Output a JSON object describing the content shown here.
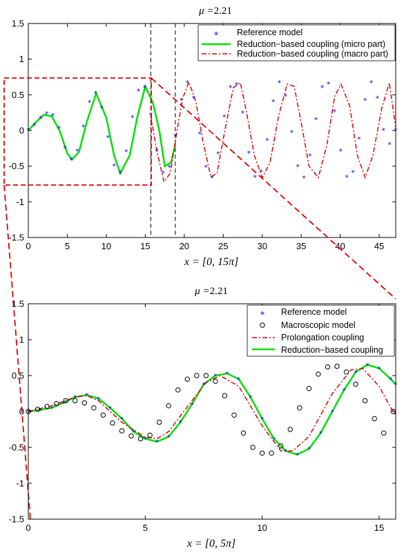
{
  "chart_data": [
    {
      "type": "line",
      "title": "μ =2.21",
      "title_main": "μ =",
      "title_value": "2.21",
      "xlabel": "x = [0, 15π]",
      "xlim": [
        0,
        47.12
      ],
      "ylim": [
        -1.5,
        1.5
      ],
      "xticks": [
        0,
        5,
        10,
        15,
        20,
        25,
        30,
        35,
        40,
        45
      ],
      "yticks": [
        -1.5,
        -1,
        -0.5,
        0,
        0.5,
        1,
        1.5
      ],
      "ytick_labels": [
        "-1.5",
        "-1",
        "-0.5",
        "0",
        "0.5",
        "1",
        "1.5"
      ],
      "legend_position": "top-right",
      "series": [
        {
          "name": "Reference model",
          "color": "#0000ff",
          "marker": "*"
        },
        {
          "name": "Reduction−based coupling (micro part)",
          "color": "#00e000",
          "style": "solid"
        },
        {
          "name": "Reduction−based coupling (macro part)",
          "color": "#e00000",
          "style": "dash-dot"
        }
      ],
      "reference_x": [
        0,
        0.785,
        1.571,
        2.356,
        3.142,
        3.927,
        4.712,
        5.498,
        6.283,
        7.069,
        7.854,
        8.639,
        9.425,
        10.21,
        10.996,
        11.781,
        12.566,
        13.352,
        14.137,
        14.923,
        15.708,
        16.493,
        17.279,
        18.064,
        18.85,
        19.635,
        20.42,
        21.206,
        21.991,
        22.777,
        23.562,
        24.347,
        25.133,
        25.918,
        26.704,
        27.489,
        28.274,
        29.06,
        29.845,
        30.631,
        31.416,
        32.201,
        32.987,
        33.772,
        34.558,
        35.343,
        36.128,
        36.914,
        37.699,
        38.485,
        39.27,
        40.055,
        40.841,
        41.626,
        42.412,
        43.197,
        43.982,
        44.768,
        45.553,
        46.339,
        47.124
      ],
      "reference_y": [
        0.0,
        0.07,
        0.17,
        0.23,
        0.21,
        0.03,
        -0.25,
        -0.41,
        -0.29,
        0.05,
        0.39,
        0.52,
        0.31,
        -0.1,
        -0.5,
        -0.6,
        -0.3,
        0.18,
        0.55,
        0.6,
        0.22,
        -0.29,
        -0.6,
        -0.52,
        -0.08,
        0.42,
        0.67,
        0.45,
        -0.05,
        -0.52,
        -0.67,
        -0.33,
        0.19,
        0.6,
        0.64,
        0.24,
        -0.32,
        -0.66,
        -0.58,
        -0.14,
        0.4,
        0.67,
        0.48,
        -0.03,
        -0.51,
        -0.67,
        -0.36,
        0.15,
        0.6,
        0.65,
        0.26,
        -0.29,
        -0.66,
        -0.59,
        -0.12,
        0.42,
        0.67,
        0.45,
        0.0,
        -0.2,
        0.0
      ],
      "micro_x": [
        0,
        1,
        2,
        3,
        4,
        5,
        5.6,
        6.5,
        7.5,
        8.7,
        10,
        11,
        11.8,
        13,
        14,
        15,
        16,
        16.8,
        17.5,
        18.3,
        18.85
      ],
      "micro_y": [
        0,
        0.12,
        0.22,
        0.2,
        0.0,
        -0.32,
        -0.41,
        -0.3,
        0.12,
        0.52,
        0.18,
        -0.35,
        -0.6,
        -0.35,
        0.2,
        0.62,
        0.38,
        0.0,
        -0.5,
        -0.45,
        -0.2
      ],
      "macro_x": [
        15.71,
        16.5,
        17.4,
        18.2,
        19.0,
        19.8,
        20.6,
        21.5,
        22.4,
        23.4,
        24.2,
        25.3,
        26.3,
        27.2,
        28.0,
        29.0,
        30.0,
        31.0,
        32.1,
        33.2,
        34.1,
        35.1,
        36.0,
        37.2,
        38.3,
        39.3,
        40.1,
        41.2,
        42.2,
        43.2,
        44.2,
        45.3,
        46.3,
        47.12
      ],
      "macro_y": [
        0.2,
        -0.3,
        -0.72,
        -0.6,
        -0.05,
        0.45,
        0.68,
        0.4,
        -0.15,
        -0.65,
        -0.6,
        0.05,
        0.6,
        0.67,
        0.25,
        -0.35,
        -0.66,
        -0.45,
        0.2,
        0.65,
        0.62,
        0.05,
        -0.5,
        -0.66,
        -0.2,
        0.48,
        0.65,
        0.35,
        -0.35,
        -0.66,
        -0.35,
        0.3,
        0.67,
        0.05
      ],
      "vlines": [
        15.71,
        18.85
      ]
    },
    {
      "type": "line",
      "title": "μ =2.21",
      "title_main": "μ =",
      "title_value": "2.21",
      "xlabel": "x = [0, 5π]",
      "xlim": [
        0,
        15.71
      ],
      "ylim": [
        -1.5,
        1.5
      ],
      "xticks": [
        0,
        5,
        10,
        15
      ],
      "yticks": [
        -1.5,
        -1,
        -0.5,
        0,
        0.5,
        1,
        1.5
      ],
      "ytick_labels": [
        "-1.5",
        "-1",
        "-0.5",
        "0",
        "0.5",
        "1",
        "1.5"
      ],
      "legend_position": "top-right",
      "series": [
        {
          "name": "Reference model",
          "color": "#0000ff",
          "marker": "*"
        },
        {
          "name": "Macroscopic model",
          "color": "#000000",
          "marker": "o"
        },
        {
          "name": "Prolongation coupling",
          "color": "#e00000",
          "style": "dash-dot"
        },
        {
          "name": "Reduction−based coupling",
          "color": "#00e000",
          "style": "solid"
        }
      ],
      "green_x": [
        0,
        0.5,
        1.0,
        1.5,
        2.0,
        2.5,
        3.0,
        3.5,
        4.0,
        4.5,
        5.0,
        5.5,
        6.0,
        6.5,
        7.0,
        7.5,
        8.0,
        8.5,
        9.0,
        9.5,
        10.0,
        10.5,
        11.0,
        11.5,
        12.0,
        12.5,
        13.0,
        13.5,
        14.0,
        14.5,
        15.0,
        15.5,
        15.71
      ],
      "green_y": [
        0.0,
        0.02,
        0.05,
        0.12,
        0.2,
        0.23,
        0.18,
        0.05,
        -0.1,
        -0.28,
        -0.38,
        -0.42,
        -0.35,
        -0.15,
        0.1,
        0.38,
        0.5,
        0.53,
        0.45,
        0.2,
        -0.1,
        -0.38,
        -0.55,
        -0.6,
        -0.52,
        -0.3,
        0.0,
        0.3,
        0.55,
        0.65,
        0.6,
        0.45,
        0.38
      ],
      "macro_x": [
        0,
        0.4,
        0.8,
        1.2,
        1.6,
        2.0,
        2.4,
        2.8,
        3.2,
        3.6,
        4.0,
        4.4,
        4.8,
        5.2,
        5.6,
        6.0,
        6.4,
        6.8,
        7.2,
        7.6,
        8.0,
        8.4,
        8.8,
        9.2,
        9.6,
        10.0,
        10.4,
        10.8,
        11.2,
        11.6,
        12.0,
        12.4,
        12.8,
        13.2,
        13.6,
        14.0,
        14.4,
        14.8,
        15.2,
        15.6
      ],
      "macro_y": [
        0.0,
        0.03,
        0.07,
        0.11,
        0.15,
        0.15,
        0.12,
        0.05,
        -0.05,
        -0.16,
        -0.27,
        -0.34,
        -0.38,
        -0.33,
        -0.15,
        0.08,
        0.3,
        0.45,
        0.5,
        0.5,
        0.42,
        0.22,
        -0.05,
        -0.3,
        -0.5,
        -0.58,
        -0.58,
        -0.48,
        -0.25,
        0.05,
        0.32,
        0.52,
        0.62,
        0.63,
        0.55,
        0.38,
        0.15,
        -0.1,
        -0.3,
        0.0
      ],
      "prolong_x": [
        0,
        1.0,
        2.0,
        2.5,
        3.0,
        4.0,
        5.0,
        5.5,
        6.0,
        7.0,
        7.6,
        8.2,
        9.0,
        10.0,
        10.8,
        11.3,
        12.0,
        13.0,
        13.8,
        14.3,
        15.0,
        15.5,
        15.71
      ],
      "prolong_y": [
        0.0,
        0.08,
        0.2,
        0.22,
        0.15,
        -0.15,
        -0.36,
        -0.38,
        -0.28,
        0.15,
        0.4,
        0.5,
        0.35,
        -0.2,
        -0.55,
        -0.55,
        -0.35,
        0.25,
        0.58,
        0.6,
        0.35,
        0.05,
        -0.05
      ]
    }
  ]
}
